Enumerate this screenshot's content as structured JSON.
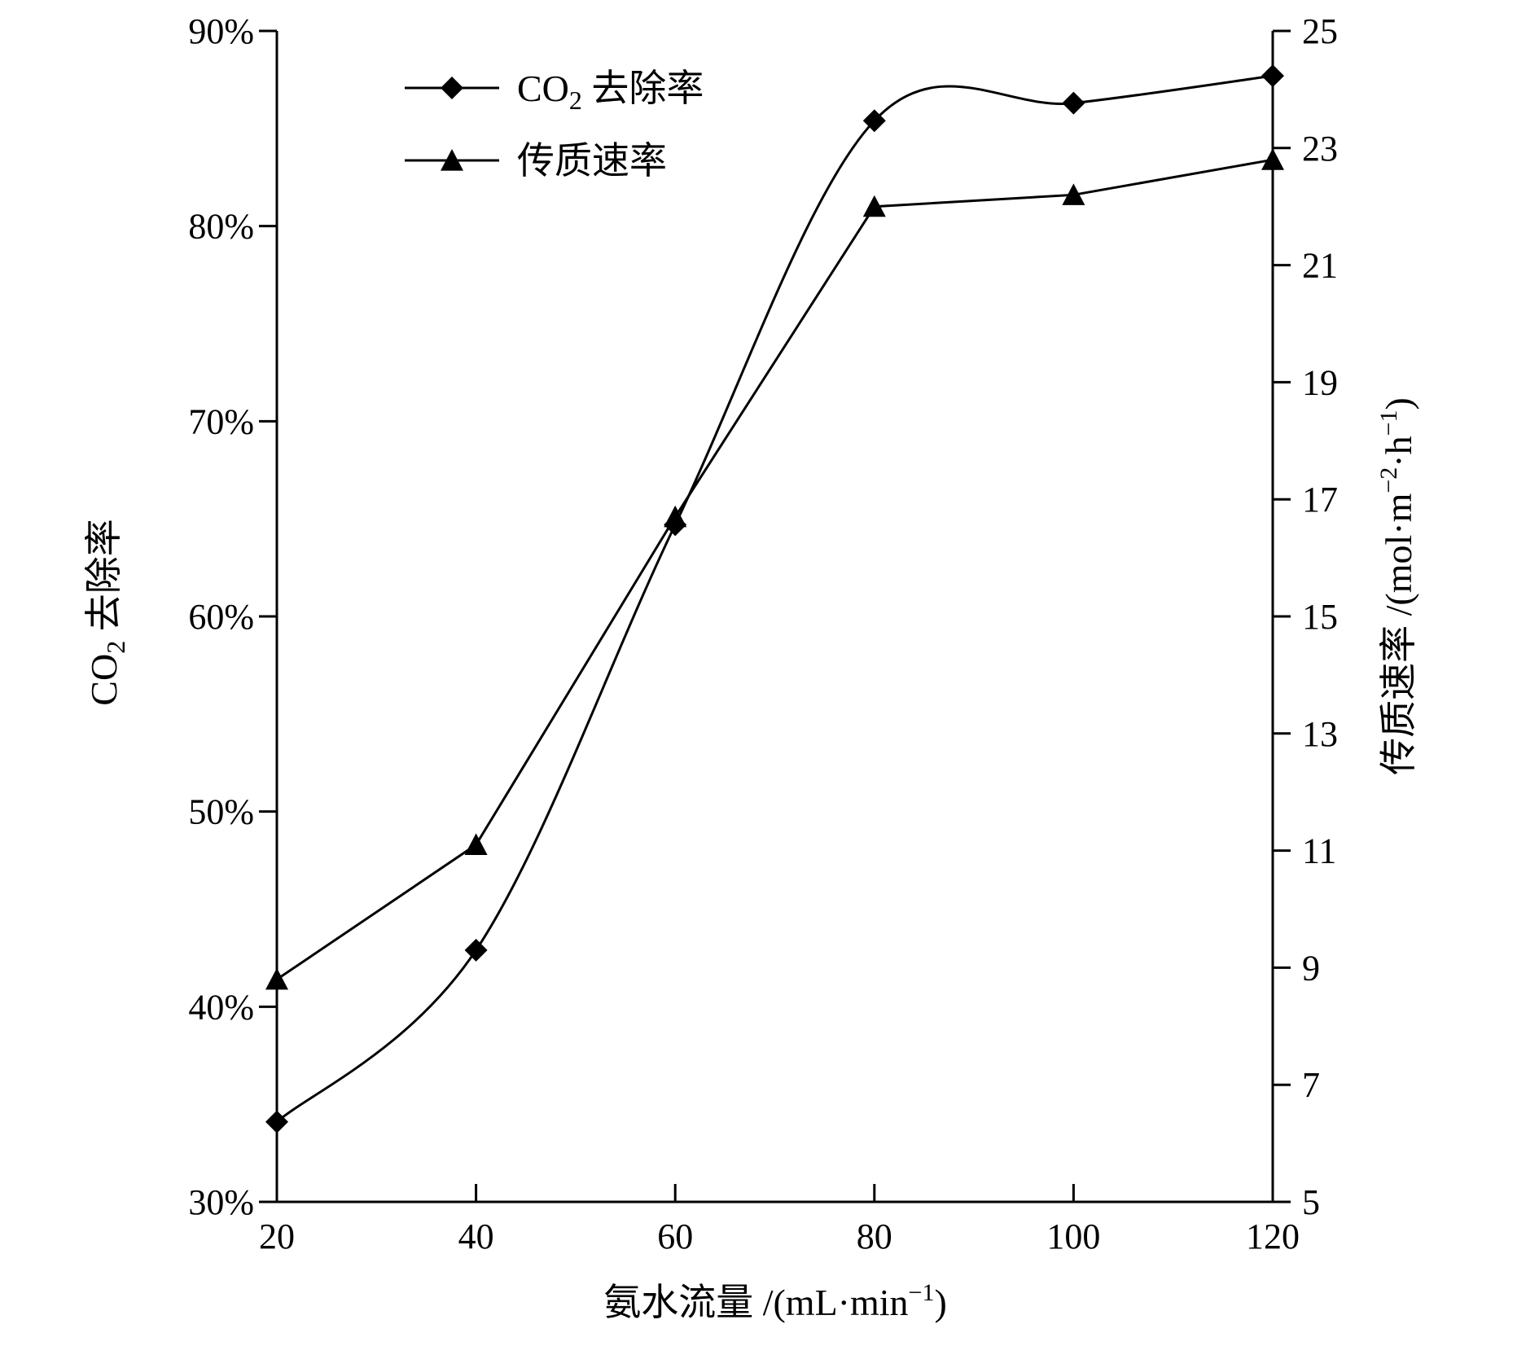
{
  "chart_data": {
    "type": "line",
    "x": [
      20,
      40,
      60,
      80,
      100,
      120
    ],
    "xlim": [
      20,
      120
    ],
    "xticks": [
      "20",
      "40",
      "60",
      "80",
      "100",
      "120"
    ],
    "xlabel": {
      "main": "氨水流量 /(mL·min",
      "sup": "−1",
      "tail": ")"
    },
    "left_axis": {
      "ylim": [
        0.3,
        0.9
      ],
      "ticks": [
        "30%",
        "40%",
        "50%",
        "60%",
        "70%",
        "80%",
        "90%"
      ],
      "label": {
        "pre": "CO",
        "sub": "2",
        "post": " 去除率"
      }
    },
    "right_axis": {
      "ylim": [
        5,
        25
      ],
      "ticks": [
        "5",
        "7",
        "9",
        "11",
        "13",
        "15",
        "17",
        "19",
        "21",
        "23",
        "25"
      ],
      "label": {
        "part1": "传质速率 /(mol·m",
        "sup1": "−2",
        "part2": "·h",
        "sup2": "−1",
        "part3": ")"
      }
    },
    "series": [
      {
        "key": "co2_removal",
        "legend": {
          "pre": "CO",
          "sub": "2",
          "post": " 去除率"
        },
        "axis": "left",
        "marker": "diamond",
        "smooth": true,
        "values": [
          0.341,
          0.429,
          0.647,
          0.854,
          0.863,
          0.877
        ]
      },
      {
        "key": "mass_transfer_rate",
        "legend": {
          "text": "传质速率"
        },
        "axis": "right",
        "marker": "triangle",
        "smooth": false,
        "values": [
          8.8,
          11.1,
          16.7,
          22.0,
          22.2,
          22.8
        ]
      }
    ],
    "grid": false,
    "legend_position": "top-left"
  }
}
